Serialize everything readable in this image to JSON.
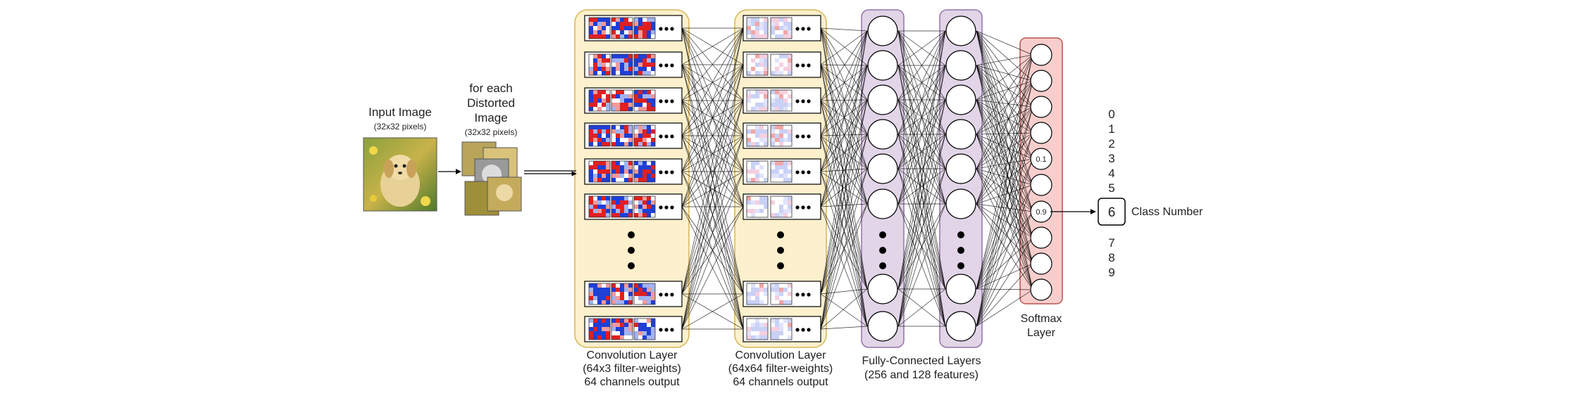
{
  "input": {
    "title": "Input Image",
    "subtitle": "(32x32 pixels)"
  },
  "distorted": {
    "title_lines": [
      "for each",
      "Distorted",
      "Image"
    ],
    "subtitle": "(32x32 pixels)"
  },
  "conv1": {
    "label_lines": [
      "Convolution Layer",
      "(64x3 filter-weights)",
      "64 channels output"
    ],
    "fill": "#fdf0cc",
    "stroke": "#d6b656"
  },
  "conv2": {
    "label_lines": [
      "Convolution Layer",
      "(64x64 filter-weights)",
      "64 channels output"
    ],
    "fill": "#fdf0cc",
    "stroke": "#d6b656"
  },
  "fc": {
    "label_lines": [
      "Fully-Connected Layers",
      "(256 and 128 features)"
    ],
    "fill": "#e1d5e7",
    "stroke": "#9673a6"
  },
  "softmax": {
    "label_lines": [
      "Softmax",
      "Layer"
    ],
    "fill": "#f8cecc",
    "stroke": "#b85450",
    "node_values": [
      "",
      "",
      "",
      "",
      "0.1",
      "",
      "0.9",
      "",
      "",
      ""
    ]
  },
  "classes": [
    "0",
    "1",
    "2",
    "3",
    "4",
    "5",
    "7",
    "8",
    "9"
  ],
  "output": {
    "value": "6",
    "label": "Class Number"
  }
}
